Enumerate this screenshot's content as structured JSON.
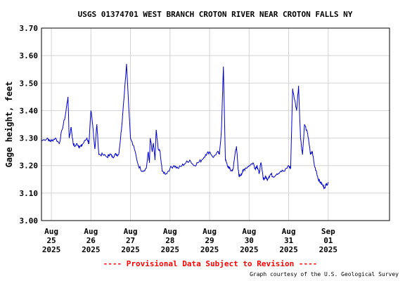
{
  "chart_data": {
    "type": "line",
    "title": "USGS 01374701 WEST BRANCH CROTON RIVER NEAR CROTON FALLS NY",
    "ylabel": "Gage height, feet",
    "xlabel": "",
    "ylim": [
      3.0,
      3.7
    ],
    "xlim": [
      -0.25,
      8.55
    ],
    "grid": true,
    "legend": "none",
    "y_ticks": [
      "3.00",
      "3.10",
      "3.20",
      "3.30",
      "3.40",
      "3.50",
      "3.60",
      "3.70"
    ],
    "x_ticks": [
      {
        "month": "Aug",
        "day": "25",
        "year": "2025"
      },
      {
        "month": "Aug",
        "day": "26",
        "year": "2025"
      },
      {
        "month": "Aug",
        "day": "27",
        "year": "2025"
      },
      {
        "month": "Aug",
        "day": "28",
        "year": "2025"
      },
      {
        "month": "Aug",
        "day": "29",
        "year": "2025"
      },
      {
        "month": "Aug",
        "day": "30",
        "year": "2025"
      },
      {
        "month": "Aug",
        "day": "31",
        "year": "2025"
      },
      {
        "month": "Sep",
        "day": "01",
        "year": "2025"
      }
    ],
    "series": [
      {
        "color": "#0000cc",
        "x": [
          -0.25,
          -0.1,
          -0.05,
          0.0,
          0.1,
          0.2,
          0.27,
          0.35,
          0.42,
          0.45,
          0.5,
          0.55,
          0.6,
          0.65,
          0.7,
          0.75,
          0.8,
          0.9,
          0.95,
          1.0,
          1.05,
          1.1,
          1.15,
          1.2,
          1.3,
          1.42,
          1.45,
          1.5,
          1.55,
          1.6,
          1.65,
          1.7,
          1.75,
          1.8,
          1.9,
          2.0,
          2.1,
          2.2,
          2.3,
          2.4,
          2.45,
          2.48,
          2.5,
          2.55,
          2.58,
          2.62,
          2.65,
          2.7,
          2.75,
          2.8,
          2.9,
          3.0,
          3.1,
          3.2,
          3.3,
          3.4,
          3.5,
          3.6,
          3.7,
          3.8,
          3.9,
          4.0,
          4.1,
          4.2,
          4.25,
          4.3,
          4.35,
          4.4,
          4.45,
          4.5,
          4.55,
          4.6,
          4.65,
          4.68,
          4.72,
          4.75,
          4.8,
          4.85,
          4.9,
          5.0,
          5.1,
          5.15,
          5.2,
          5.22,
          5.25,
          5.3,
          5.35,
          5.38,
          5.42,
          5.45,
          5.5,
          5.55,
          5.6,
          5.7,
          5.8,
          5.9,
          6.0,
          6.05,
          6.1,
          6.15,
          6.2,
          6.25,
          6.3,
          6.35,
          6.4,
          6.45,
          6.5,
          6.55,
          6.6,
          6.65,
          6.7,
          6.75,
          6.8,
          6.85,
          6.9,
          6.95,
          7.0
        ],
        "values": [
          3.29,
          3.3,
          3.29,
          3.29,
          3.3,
          3.28,
          3.33,
          3.38,
          3.45,
          3.3,
          3.34,
          3.28,
          3.27,
          3.28,
          3.27,
          3.27,
          3.28,
          3.3,
          3.28,
          3.4,
          3.34,
          3.26,
          3.35,
          3.24,
          3.24,
          3.23,
          3.24,
          3.24,
          3.23,
          3.24,
          3.24,
          3.24,
          3.3,
          3.38,
          3.57,
          3.3,
          3.26,
          3.2,
          3.18,
          3.19,
          3.25,
          3.21,
          3.3,
          3.25,
          3.28,
          3.22,
          3.33,
          3.26,
          3.25,
          3.18,
          3.17,
          3.19,
          3.2,
          3.19,
          3.2,
          3.21,
          3.22,
          3.2,
          3.21,
          3.22,
          3.24,
          3.25,
          3.23,
          3.25,
          3.24,
          3.33,
          3.56,
          3.22,
          3.2,
          3.19,
          3.18,
          3.19,
          3.25,
          3.27,
          3.19,
          3.16,
          3.17,
          3.18,
          3.19,
          3.2,
          3.21,
          3.19,
          3.2,
          3.19,
          3.17,
          3.21,
          3.16,
          3.15,
          3.16,
          3.15,
          3.16,
          3.17,
          3.16,
          3.17,
          3.18,
          3.18,
          3.2,
          3.19,
          3.48,
          3.44,
          3.4,
          3.49,
          3.3,
          3.24,
          3.35,
          3.33,
          3.3,
          3.24,
          3.25,
          3.2,
          3.18,
          3.15,
          3.14,
          3.13,
          3.12,
          3.13,
          3.14
        ],
        "style": "noisy-hourly-trace"
      }
    ]
  },
  "provisional_text": "---- Provisional Data Subject to Revision ----",
  "credit_text": "Graph courtesy of the U.S. Geological Survey",
  "colors": {
    "series": "#0000cc",
    "provisional": "#ff0000",
    "grid": "#d3d3d3",
    "frame": "#000000"
  }
}
